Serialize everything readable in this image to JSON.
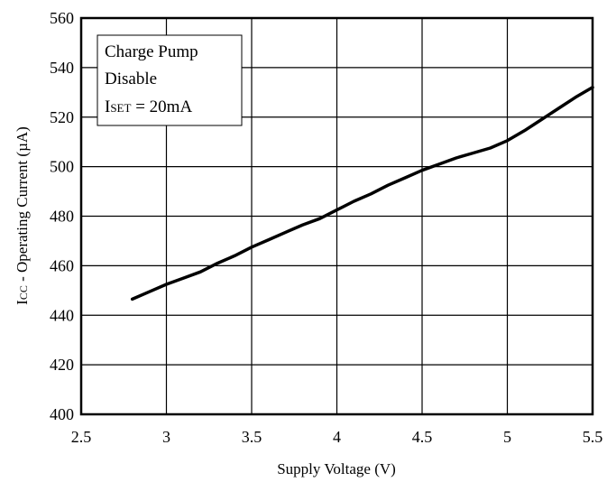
{
  "chart_data": {
    "type": "line",
    "title": "",
    "xlabel": "Supply Voltage (V)",
    "ylabel": "ICC - Operating Current  (µA)",
    "ylabel_parts": {
      "main": "I",
      "sub": "CC",
      "rest": " - Operating Current  (µA)"
    },
    "xlim": [
      2.5,
      5.5
    ],
    "ylim": [
      400,
      560
    ],
    "x_ticks": [
      2.5,
      3,
      3.5,
      4,
      4.5,
      5,
      5.5
    ],
    "x_tick_labels": [
      "2.5",
      "3",
      "3.5",
      "4",
      "4.5",
      "5",
      "5.5"
    ],
    "y_ticks": [
      400,
      420,
      440,
      460,
      480,
      500,
      520,
      540,
      560
    ],
    "y_tick_labels": [
      "400",
      "420",
      "440",
      "460",
      "480",
      "500",
      "520",
      "540",
      "560"
    ],
    "grid": true,
    "series": [
      {
        "x": [
          2.8,
          2.9,
          3.0,
          3.1,
          3.2,
          3.3,
          3.4,
          3.5,
          3.6,
          3.7,
          3.8,
          3.9,
          4.0,
          4.1,
          4.2,
          4.3,
          4.4,
          4.5,
          4.6,
          4.7,
          4.8,
          4.9,
          5.0,
          5.1,
          5.2,
          5.3,
          5.4,
          5.5
        ],
        "y": [
          446.5,
          449.5,
          452.5,
          455,
          457.5,
          461,
          464,
          467.5,
          470.5,
          473.5,
          476.5,
          479,
          482.5,
          486,
          489,
          492.5,
          495.5,
          498.5,
          501,
          503.5,
          505.5,
          507.5,
          510.5,
          514.5,
          519,
          523.5,
          528,
          532
        ],
        "color": "#000000"
      }
    ],
    "legend": {
      "placement": "top-left",
      "lines": [
        "Charge Pump",
        "Disable"
      ],
      "iset": {
        "main": "I",
        "sub": "SET",
        "rest": " = 20mA"
      }
    }
  }
}
